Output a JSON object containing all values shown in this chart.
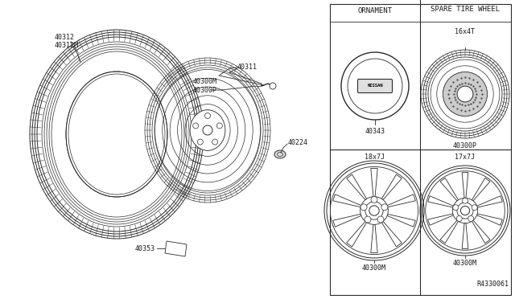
{
  "bg_color": "#ffffff",
  "line_color": "#2a2a2a",
  "text_color": "#1a1a1a",
  "divider_color": "#666666",
  "labels": {
    "top_left": "40312\n40312M",
    "part1": "40311",
    "part2": "40300M\n40300P",
    "part3": "40224",
    "part4": "40353",
    "ornament_label": "ORNAMENT",
    "spare_label": "SPARE TIRE WHEEL",
    "item1_code": "40343",
    "item2_code": "40300P",
    "item3_code": "40300M",
    "item4_code": "40300M",
    "item2_size": "16x4T",
    "item3_size": "18x7J",
    "item4_size": "17x7J",
    "ref_code": "R4330061"
  }
}
